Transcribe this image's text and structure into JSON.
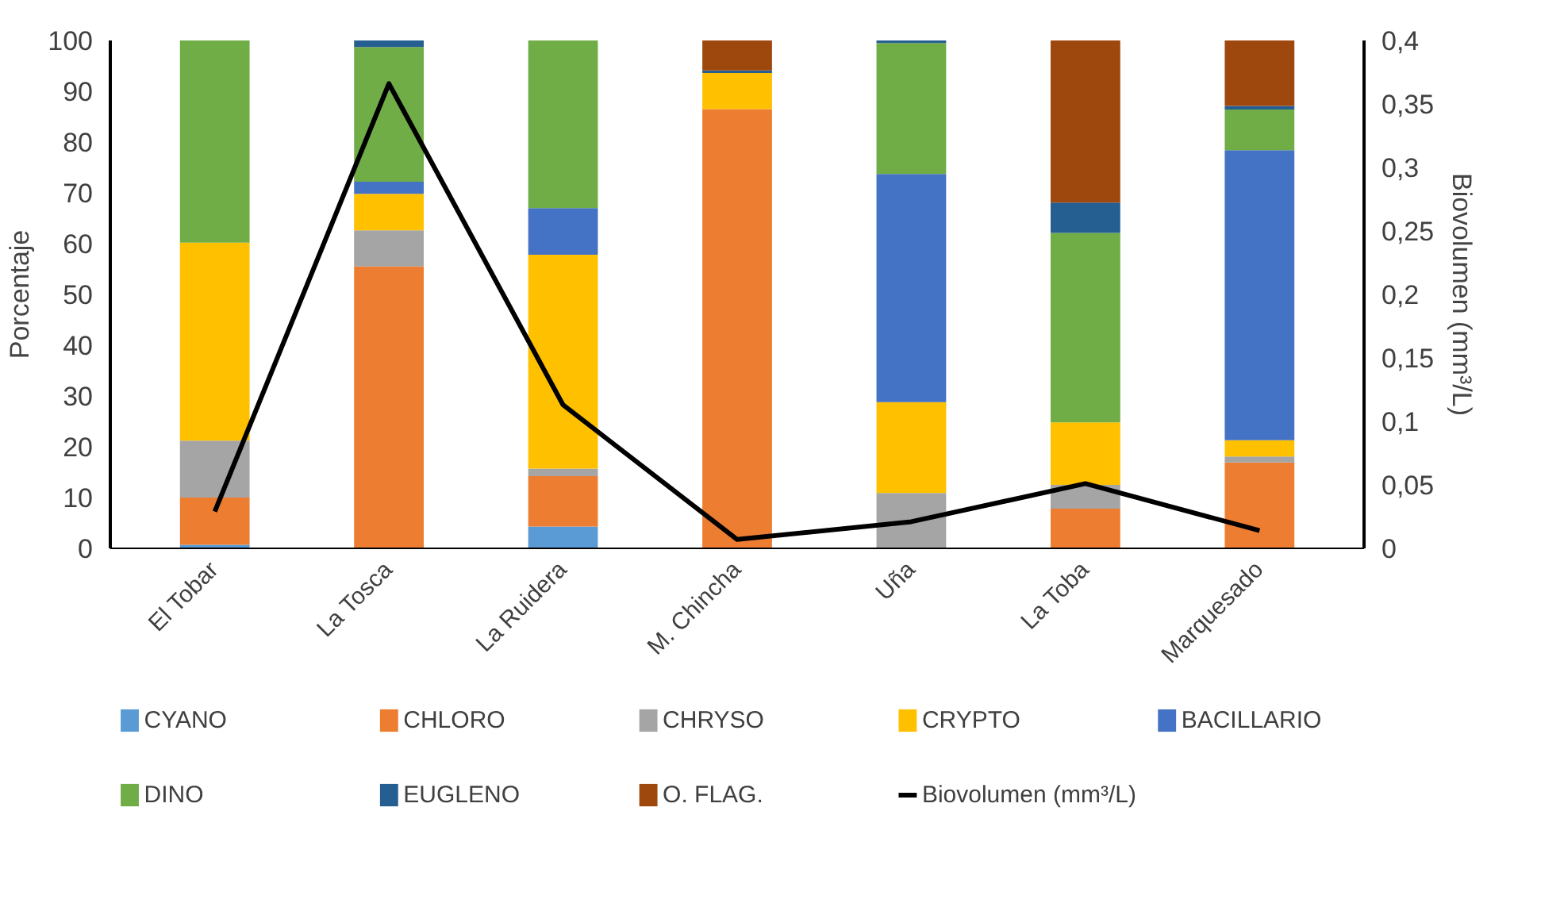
{
  "chart_data": {
    "type": "bar",
    "stacked": true,
    "categories": [
      "El Tobar",
      "La Tosca",
      "La Ruidera",
      "M. Chincha",
      "Uña",
      "La Toba",
      "Marquesado"
    ],
    "ylabel": "Porcentaje",
    "y2label": "Biovolumen (mm³/L)",
    "ylim": [
      0,
      100
    ],
    "yticks": [
      0,
      10,
      20,
      30,
      40,
      50,
      60,
      70,
      80,
      90,
      100
    ],
    "y2lim": [
      0,
      0.4
    ],
    "y2ticks": [
      {
        "value": 0,
        "label": "0"
      },
      {
        "value": 0.05,
        "label": "0,05"
      },
      {
        "value": 0.1,
        "label": "0,1"
      },
      {
        "value": 0.15,
        "label": "0,15"
      },
      {
        "value": 0.2,
        "label": "0,2"
      },
      {
        "value": 0.25,
        "label": "0,25"
      },
      {
        "value": 0.3,
        "label": "0,3"
      },
      {
        "value": 0.35,
        "label": "0,35"
      },
      {
        "value": 0.4,
        "label": "0,4"
      }
    ],
    "grid": false,
    "legend": "bottom",
    "series": [
      {
        "name": "CYANO",
        "color": "#5b9bd5",
        "values": [
          0.7,
          0,
          4.3,
          0,
          0,
          0,
          0
        ]
      },
      {
        "name": "CHLORO",
        "color": "#ed7d31",
        "values": [
          9.3,
          55.5,
          9.9,
          86.5,
          0,
          7.8,
          16.9
        ]
      },
      {
        "name": "CHRYSO",
        "color": "#a5a5a5",
        "values": [
          11.2,
          7.1,
          1.5,
          0,
          10.9,
          4.7,
          1.2
        ]
      },
      {
        "name": "CRYPTO",
        "color": "#ffc000",
        "values": [
          39,
          7.2,
          42.1,
          7.1,
          17.9,
          12.3,
          3.2
        ]
      },
      {
        "name": "BACILLARIO",
        "color": "#4472c4",
        "values": [
          0,
          2.4,
          9.2,
          0,
          44.9,
          0,
          57.1
        ]
      },
      {
        "name": "DINO",
        "color": "#70ad47",
        "values": [
          39.8,
          26.5,
          33,
          0,
          25.8,
          37.3,
          8
        ]
      },
      {
        "name": "EUGLENO",
        "color": "#255e91",
        "values": [
          0,
          1.3,
          0,
          0.5,
          0.5,
          6,
          0.7
        ]
      },
      {
        "name": "O. FLAG.",
        "color": "#9e480e",
        "values": [
          0,
          0,
          0,
          5.9,
          0,
          31.9,
          12.9
        ]
      },
      {
        "name": "Biovolumen (mm³/L)",
        "type": "line",
        "axis": "y2",
        "color": "#000000",
        "values": [
          0.029,
          0.366,
          0.113,
          0.007,
          0.021,
          0.051,
          0.014
        ]
      }
    ]
  }
}
